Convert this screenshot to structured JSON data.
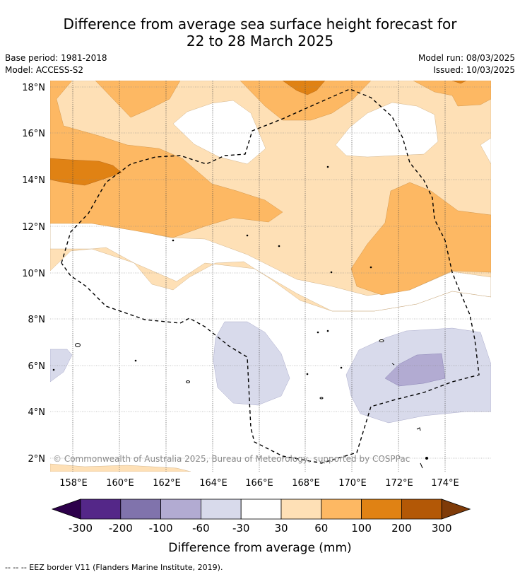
{
  "title_line1": "Difference from average sea surface height forecast for",
  "title_line2": "22 to 28 March 2025",
  "meta_left": {
    "base_period": "Base period: 1981-2018",
    "model": "Model: ACCESS-S2"
  },
  "meta_right": {
    "model_run": "Model run: 08/03/2025",
    "issued": "Issued: 10/03/2025"
  },
  "copyright": "© Commonwealth of Australia 2025, Bureau of Meteorology, supported by COSPPac",
  "lat_labels": [
    "18°N",
    "16°N",
    "14°N",
    "12°N",
    "10°N",
    "8°N",
    "6°N",
    "4°N",
    "2°N"
  ],
  "lon_labels": [
    "158°E",
    "160°E",
    "162°E",
    "164°E",
    "166°E",
    "168°E",
    "170°E",
    "172°E",
    "174°E"
  ],
  "colorbar": {
    "ticks": [
      "-300",
      "-200",
      "-100",
      "-60",
      "-30",
      "30",
      "60",
      "100",
      "200",
      "300"
    ],
    "colors": [
      "#2d004b",
      "#542788",
      "#8073ac",
      "#b2abd2",
      "#d8daeb",
      "#ffffff",
      "#fee0b6",
      "#fdb863",
      "#e08214",
      "#b35806",
      "#7f3b08"
    ],
    "label": "Difference from average (mm)"
  },
  "footnote": "--  --  -- EEZ border V11 (Flanders Marine Institute, 2019)."
}
